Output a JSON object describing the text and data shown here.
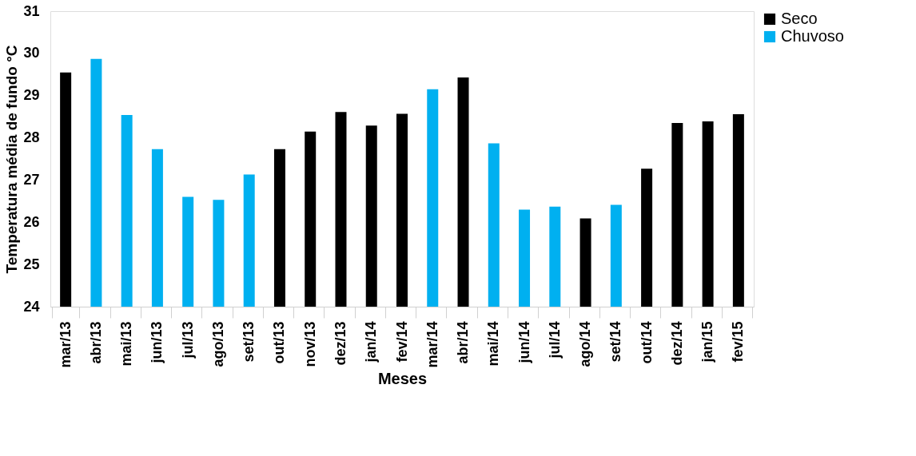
{
  "chart_data": {
    "type": "bar",
    "xlabel": "Meses",
    "ylabel": "Temperatura média de fundo °C",
    "categories": [
      "mar/13",
      "abr/13",
      "mai/13",
      "jun/13",
      "jul/13",
      "ago/13",
      "set/13",
      "out/13",
      "nov/13",
      "dez/13",
      "jan/14",
      "fev/14",
      "mar/14",
      "abr/14",
      "mai/14",
      "jun/14",
      "jul/14",
      "ago/14",
      "set/14",
      "out/14",
      "dez/14",
      "jan/15",
      "fev/15"
    ],
    "series": [
      {
        "name": "Seco",
        "color": "#000000",
        "values": [
          29.55,
          null,
          null,
          null,
          null,
          null,
          null,
          27.73,
          28.15,
          28.61,
          28.29,
          28.57,
          null,
          29.43,
          null,
          null,
          null,
          26.09,
          null,
          27.27,
          28.35,
          28.39,
          28.56
        ]
      },
      {
        "name": "Chuvoso",
        "color": "#00b0f0",
        "values": [
          null,
          29.87,
          28.54,
          27.73,
          26.6,
          26.53,
          27.13,
          null,
          null,
          null,
          null,
          null,
          29.15,
          null,
          27.87,
          26.3,
          26.37,
          null,
          26.41,
          null,
          null,
          null,
          null
        ]
      }
    ],
    "ylim": [
      24,
      31
    ],
    "yticks": [
      24,
      25,
      26,
      27,
      28,
      29,
      30,
      31
    ],
    "grid": false,
    "legend": "top right"
  }
}
